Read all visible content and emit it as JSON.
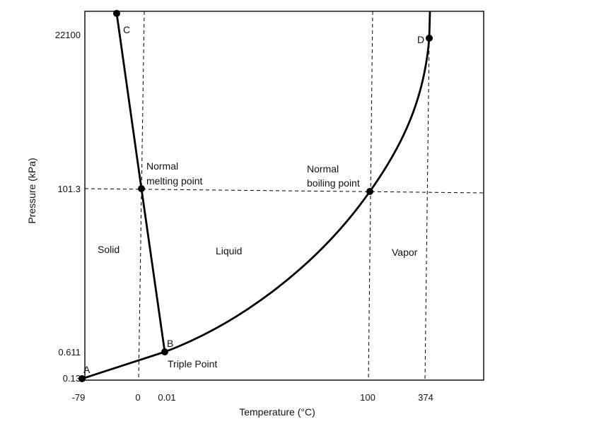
{
  "chart_data": {
    "type": "line",
    "title": "",
    "xlabel": "Temperature (°C)",
    "ylabel": "Pressure (kPa)",
    "x_scale": "non-linear (schematic)",
    "y_scale": "non-linear (schematic)",
    "x_ticks": [
      "-79",
      "0",
      "0.01",
      "100",
      "374"
    ],
    "y_ticks": [
      "0.13",
      "0.611",
      "101.3",
      "22100"
    ],
    "series": [
      {
        "name": "Sublimation / vaporization curve (A–B–D)",
        "points": [
          [
            "-79",
            "0.13"
          ],
          [
            "0.01",
            "0.611"
          ],
          [
            "100",
            "101.3"
          ],
          [
            "374",
            "22100"
          ]
        ]
      },
      {
        "name": "Melting curve (B–C)",
        "points": [
          [
            "0.01",
            "0.611"
          ],
          [
            "0",
            "101.3"
          ]
        ]
      }
    ],
    "point_labels": [
      {
        "id": "A",
        "label": "A"
      },
      {
        "id": "B",
        "label": "B"
      },
      {
        "id": "C",
        "label": "C"
      },
      {
        "id": "D",
        "label": "D"
      }
    ],
    "annotations": {
      "normal_melting_point": [
        "Normal",
        "melting point"
      ],
      "normal_boiling_point": [
        "Normal",
        "boiling point"
      ],
      "triple_point": "Triple Point"
    },
    "regions": [
      "Solid",
      "Liquid",
      "Vapor"
    ]
  }
}
